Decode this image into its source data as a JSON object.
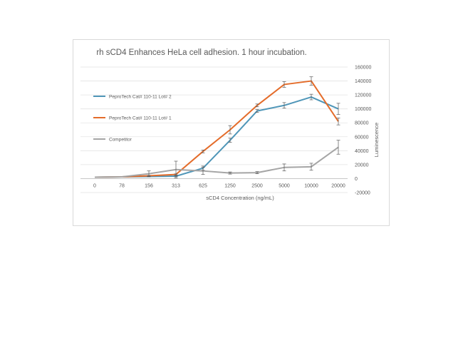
{
  "chart_data": {
    "type": "line",
    "title": "rh sCD4 Enhances HeLa cell adhesion.  1 hour incubation.",
    "xlabel": "sCD4 Concentration (ng/mL)",
    "ylabel": "Luminescence",
    "categories": [
      "0",
      "78",
      "156",
      "313",
      "625",
      "1250",
      "2500",
      "5000",
      "10000",
      "20000"
    ],
    "ylim": [
      -20000,
      160000
    ],
    "yticks": [
      -20000,
      0,
      20000,
      40000,
      60000,
      80000,
      100000,
      120000,
      140000,
      160000
    ],
    "y_axis_side": "right",
    "grid": true,
    "legend_position": "left",
    "series": [
      {
        "name": "PeproTech Cat# 110-11 Lot# 2",
        "color": "#4f96b8",
        "values": [
          2000,
          2500,
          3000,
          3500,
          15000,
          55000,
          97000,
          105000,
          117000,
          100000
        ],
        "errors": [
          0,
          0,
          500,
          800,
          3000,
          3000,
          2000,
          4000,
          4000,
          8000
        ]
      },
      {
        "name": "PeproTech Cat# 110-11 Lot# 1",
        "color": "#e46c2a",
        "values": [
          2000,
          2500,
          4000,
          6000,
          39000,
          70000,
          105000,
          135000,
          140000,
          82000
        ],
        "errors": [
          0,
          0,
          500,
          800,
          2000,
          6000,
          2000,
          4000,
          6000,
          5000
        ]
      },
      {
        "name": "Competitor",
        "color": "#a5a5a5",
        "values": [
          2000,
          2500,
          7000,
          13000,
          11000,
          8000,
          8500,
          16000,
          17000,
          45000
        ],
        "errors": [
          0,
          0,
          4000,
          12000,
          5000,
          1500,
          1500,
          5000,
          5000,
          10000
        ]
      }
    ]
  }
}
